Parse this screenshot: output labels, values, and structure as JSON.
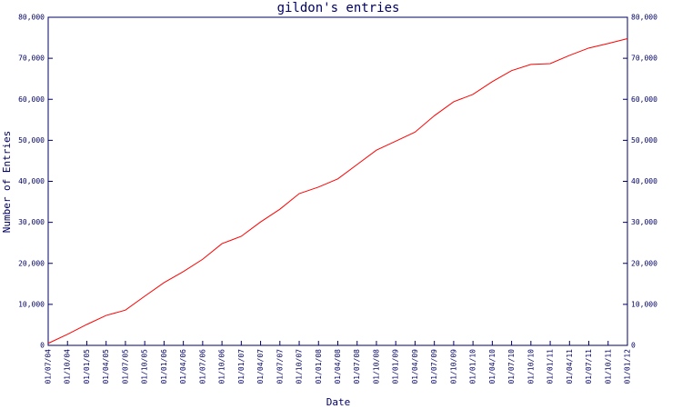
{
  "chart_data": {
    "type": "line",
    "title": "gildon's entries",
    "x_label": "Date",
    "y_label": "Number of Entries",
    "x": [
      "01/07/04",
      "01/10/04",
      "01/01/05",
      "01/04/05",
      "01/07/05",
      "01/10/05",
      "01/01/06",
      "01/04/06",
      "01/07/06",
      "01/10/06",
      "01/01/07",
      "01/04/07",
      "01/07/07",
      "01/10/07",
      "01/01/08",
      "01/04/08",
      "01/07/08",
      "01/10/08",
      "01/01/09",
      "01/04/09",
      "01/07/09",
      "01/10/09",
      "01/01/10",
      "01/04/10",
      "01/07/10",
      "01/10/10",
      "01/01/11",
      "01/04/11",
      "01/07/11",
      "01/10/11",
      "01/01/12"
    ],
    "series": [
      {
        "color": "#ff0000",
        "values": [
          500,
          2700,
          5100,
          7300,
          8600,
          12000,
          15300,
          18000,
          21000,
          24800,
          26600,
          30100,
          33200,
          37000,
          38600,
          40600,
          44100,
          47600,
          49800,
          52000,
          56000,
          59400,
          61200,
          64300,
          67000,
          68500,
          68700,
          70700,
          72500,
          73600,
          74800
        ]
      }
    ],
    "ylim": [
      0,
      80000
    ],
    "yticks": [
      0,
      {
        "value": 10000,
        "label": "10,000"
      },
      {
        "value": 20000,
        "label": "20,000"
      },
      {
        "value": 30000,
        "label": "30,000"
      },
      {
        "value": 40000,
        "label": "40,000"
      },
      {
        "value": 50000,
        "label": "50,000"
      },
      {
        "value": 60000,
        "label": "60,000"
      },
      {
        "value": 70000,
        "label": "70,000"
      },
      {
        "value": 80000,
        "label": "80,000"
      }
    ],
    "y2lim": [
      0,
      80000
    ],
    "y2ticks": [
      0,
      {
        "value": 10000,
        "label": "10,000"
      },
      {
        "value": 20000,
        "label": "20,000"
      },
      {
        "value": 30000,
        "label": "30,000"
      },
      {
        "value": 40000,
        "label": "40,000"
      },
      {
        "value": 50000,
        "label": "50,000"
      },
      {
        "value": 60000,
        "label": "60,000"
      },
      {
        "value": 70000,
        "label": "70,000"
      },
      {
        "value": 80000,
        "label": "80,000"
      }
    ]
  }
}
